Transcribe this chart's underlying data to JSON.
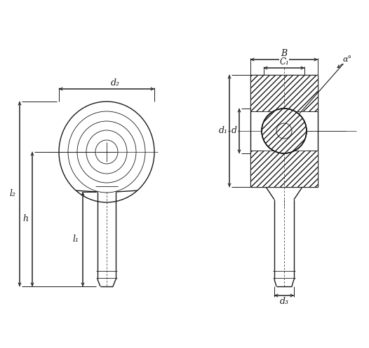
{
  "bg_color": "#ffffff",
  "line_color": "#1a1a1a",
  "fig_width": 5.26,
  "fig_height": 4.97,
  "labels": {
    "d2": "d₂",
    "l2": "l₂",
    "h": "h",
    "l1": "l₁",
    "B": "B",
    "C1": "C₁",
    "d1": "d₁",
    "d": "d",
    "d3": "d₃",
    "alpha": "α°"
  }
}
